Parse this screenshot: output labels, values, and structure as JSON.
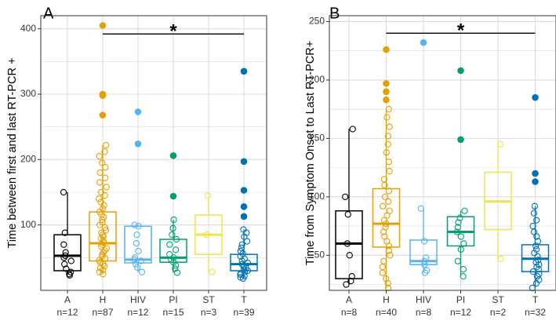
{
  "chart_data": [
    {
      "type": "box",
      "panel_label": "A",
      "ylabel": "Time between first and last RT-PCR +",
      "ylim": [
        0,
        420
      ],
      "yticks": [
        100,
        200,
        300,
        400
      ],
      "grid": true,
      "significance": {
        "from": "H",
        "to": "T",
        "label": "*",
        "y": 392
      },
      "groups": [
        {
          "name": "A",
          "n_label": "n=12",
          "color": "#000000",
          "min": 23,
          "q1": 30,
          "median": 53,
          "q3": 85,
          "max": 150,
          "points": [
            150,
            88,
            70,
            58,
            53,
            50,
            45,
            40,
            33,
            28,
            25,
            23
          ],
          "outliers": []
        },
        {
          "name": "H",
          "n_label": "n=87",
          "color": "#E69F00",
          "min": 25,
          "q1": 45,
          "median": 72,
          "q3": 120,
          "max": 222,
          "points": [
            222,
            212,
            205,
            195,
            188,
            180,
            172,
            165,
            158,
            150,
            145,
            140,
            135,
            130,
            125,
            120,
            116,
            112,
            108,
            104,
            100,
            96,
            92,
            88,
            85,
            82,
            79,
            76,
            73,
            70,
            67,
            64,
            61,
            58,
            55,
            52,
            49,
            46,
            43,
            40,
            37,
            34,
            31,
            28,
            25
          ],
          "outliers": [
            405,
            300,
            298,
            268
          ]
        },
        {
          "name": "HIV",
          "n_label": "n=12",
          "color": "#56B4E9",
          "min": 28,
          "q1": 42,
          "median": 47,
          "q3": 98,
          "max": 100,
          "points": [
            100,
            98,
            85,
            72,
            60,
            50,
            47,
            45,
            40,
            35,
            28
          ],
          "outliers": [
            273,
            224
          ]
        },
        {
          "name": "PI",
          "n_label": "n=15",
          "color": "#009E73",
          "min": 27,
          "q1": 43,
          "median": 50,
          "q3": 78,
          "max": 108,
          "points": [
            108,
            95,
            85,
            78,
            70,
            62,
            55,
            50,
            47,
            43,
            38,
            33,
            27
          ],
          "outliers": [
            206,
            144
          ]
        },
        {
          "name": "ST",
          "n_label": "n=3",
          "color": "#F0E442",
          "min": 28,
          "q1": 55,
          "median": 85,
          "q3": 115,
          "max": 145,
          "points": [
            145,
            85,
            28
          ],
          "outliers": []
        },
        {
          "name": "T",
          "n_label": "n=39",
          "color": "#0072B2",
          "min": 18,
          "q1": 30,
          "median": 40,
          "q3": 55,
          "max": 93,
          "points": [
            93,
            88,
            82,
            75,
            70,
            65,
            60,
            56,
            52,
            48,
            45,
            42,
            40,
            38,
            36,
            34,
            32,
            30,
            28,
            26,
            24,
            22,
            20,
            18
          ],
          "outliers": [
            335,
            197,
            153,
            128,
            113
          ]
        }
      ]
    },
    {
      "type": "box",
      "panel_label": "B",
      "ylabel": "Time from Symptom Onset to Last RT-PCR+",
      "ylim": [
        20,
        255
      ],
      "yticks": [
        50,
        100,
        150,
        200,
        250
      ],
      "grid": true,
      "significance": {
        "from": "H",
        "to": "T",
        "label": "*",
        "y": 240
      },
      "groups": [
        {
          "name": "A",
          "n_label": "n=8",
          "color": "#000000",
          "min": 25,
          "q1": 30,
          "median": 60,
          "q3": 88,
          "max": 158,
          "points": [
            158,
            100,
            85,
            60,
            50,
            32,
            28,
            25
          ],
          "outliers": []
        },
        {
          "name": "H",
          "n_label": "n=40",
          "color": "#E69F00",
          "min": 22,
          "q1": 57,
          "median": 77,
          "q3": 107,
          "max": 175,
          "points": [
            175,
            168,
            160,
            152,
            145,
            138,
            130,
            122,
            115,
            110,
            105,
            100,
            96,
            92,
            88,
            84,
            80,
            77,
            74,
            70,
            66,
            62,
            58,
            54,
            50,
            45,
            40,
            35,
            30,
            26,
            22
          ],
          "outliers": [
            226,
            197,
            190,
            183
          ]
        },
        {
          "name": "HIV",
          "n_label": "n=8",
          "color": "#56B4E9",
          "min": 35,
          "q1": 42,
          "median": 45,
          "q3": 63,
          "max": 90,
          "points": [
            90,
            62,
            48,
            45,
            42,
            37,
            35
          ],
          "outliers": [
            232
          ]
        },
        {
          "name": "PI",
          "n_label": "n=12",
          "color": "#009E73",
          "min": 32,
          "q1": 58,
          "median": 70,
          "q3": 83,
          "max": 88,
          "points": [
            88,
            82,
            78,
            74,
            70,
            66,
            60,
            55,
            45,
            38,
            32
          ],
          "outliers": [
            208,
            149
          ]
        },
        {
          "name": "ST",
          "n_label": "n=2",
          "color": "#F0E442",
          "min": 47,
          "q1": 72,
          "median": 96,
          "q3": 121,
          "max": 145,
          "points": [
            145,
            47
          ],
          "outliers": []
        },
        {
          "name": "T",
          "n_label": "n=32",
          "color": "#0072B2",
          "min": 22,
          "q1": 36,
          "median": 47,
          "q3": 59,
          "max": 92,
          "points": [
            92,
            86,
            80,
            75,
            70,
            66,
            62,
            58,
            55,
            52,
            49,
            46,
            44,
            42,
            40,
            38,
            36,
            34,
            32,
            29,
            26,
            22
          ],
          "outliers": [
            185,
            120,
            113
          ]
        }
      ]
    }
  ]
}
